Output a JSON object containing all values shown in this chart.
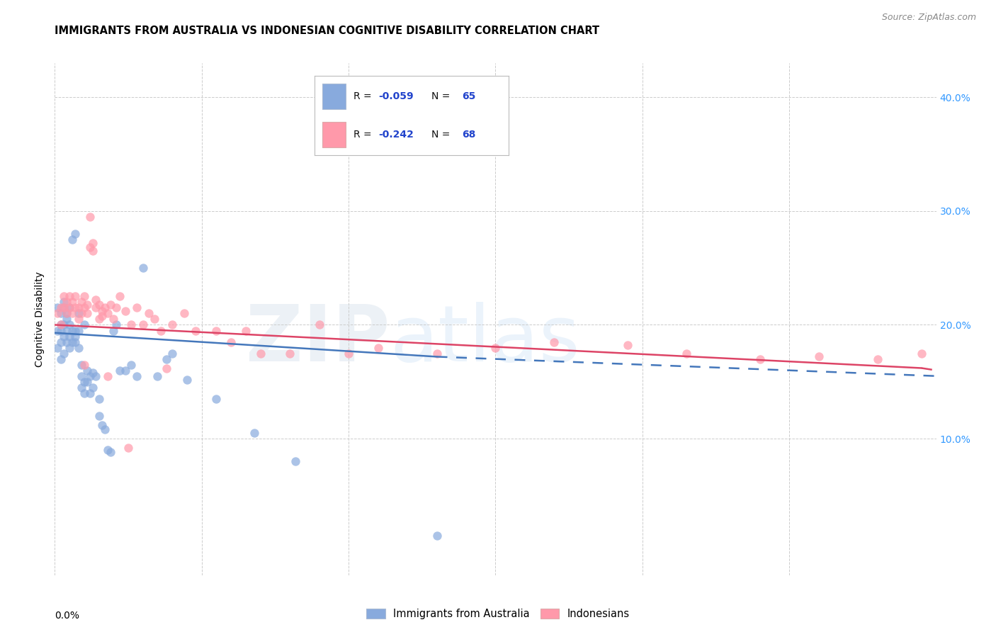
{
  "title": "IMMIGRANTS FROM AUSTRALIA VS INDONESIAN COGNITIVE DISABILITY CORRELATION CHART",
  "source": "Source: ZipAtlas.com",
  "ylabel": "Cognitive Disability",
  "yticks": [
    "10.0%",
    "20.0%",
    "30.0%",
    "40.0%"
  ],
  "ytick_vals": [
    0.1,
    0.2,
    0.3,
    0.4
  ],
  "xlim": [
    0.0,
    0.3
  ],
  "ylim": [
    -0.02,
    0.43
  ],
  "legend1_r": "-0.059",
  "legend1_n": "65",
  "legend2_r": "-0.242",
  "legend2_n": "68",
  "color_blue": "#88AADD",
  "color_pink": "#FF99AA",
  "color_blue_line": "#4477BB",
  "color_pink_line": "#DD4466",
  "legend_label1": "Immigrants from Australia",
  "legend_label2": "Indonesians",
  "blue_scatter_x": [
    0.001,
    0.001,
    0.001,
    0.002,
    0.002,
    0.002,
    0.002,
    0.002,
    0.003,
    0.003,
    0.003,
    0.003,
    0.003,
    0.004,
    0.004,
    0.004,
    0.004,
    0.005,
    0.005,
    0.005,
    0.005,
    0.006,
    0.006,
    0.006,
    0.007,
    0.007,
    0.007,
    0.007,
    0.008,
    0.008,
    0.008,
    0.009,
    0.009,
    0.009,
    0.01,
    0.01,
    0.01,
    0.011,
    0.011,
    0.012,
    0.012,
    0.013,
    0.013,
    0.014,
    0.015,
    0.015,
    0.016,
    0.017,
    0.018,
    0.019,
    0.02,
    0.021,
    0.022,
    0.024,
    0.026,
    0.028,
    0.03,
    0.035,
    0.038,
    0.04,
    0.045,
    0.055,
    0.068,
    0.082,
    0.13
  ],
  "blue_scatter_y": [
    0.18,
    0.195,
    0.215,
    0.17,
    0.185,
    0.195,
    0.2,
    0.21,
    0.175,
    0.19,
    0.2,
    0.215,
    0.22,
    0.185,
    0.195,
    0.205,
    0.21,
    0.18,
    0.19,
    0.2,
    0.215,
    0.185,
    0.195,
    0.275,
    0.185,
    0.19,
    0.195,
    0.28,
    0.18,
    0.195,
    0.21,
    0.145,
    0.155,
    0.165,
    0.14,
    0.15,
    0.2,
    0.15,
    0.16,
    0.14,
    0.155,
    0.145,
    0.158,
    0.155,
    0.12,
    0.135,
    0.112,
    0.108,
    0.09,
    0.088,
    0.195,
    0.2,
    0.16,
    0.16,
    0.165,
    0.155,
    0.25,
    0.155,
    0.17,
    0.175,
    0.152,
    0.135,
    0.105,
    0.08,
    0.015
  ],
  "pink_scatter_x": [
    0.001,
    0.002,
    0.002,
    0.003,
    0.003,
    0.004,
    0.004,
    0.005,
    0.005,
    0.006,
    0.006,
    0.007,
    0.007,
    0.008,
    0.008,
    0.009,
    0.009,
    0.01,
    0.01,
    0.011,
    0.011,
    0.012,
    0.012,
    0.013,
    0.013,
    0.014,
    0.014,
    0.015,
    0.015,
    0.016,
    0.016,
    0.017,
    0.018,
    0.019,
    0.02,
    0.021,
    0.022,
    0.024,
    0.026,
    0.028,
    0.03,
    0.032,
    0.034,
    0.036,
    0.04,
    0.044,
    0.048,
    0.055,
    0.06,
    0.065,
    0.07,
    0.08,
    0.09,
    0.1,
    0.11,
    0.13,
    0.15,
    0.17,
    0.195,
    0.215,
    0.24,
    0.26,
    0.28,
    0.295,
    0.01,
    0.018,
    0.025,
    0.038
  ],
  "pink_scatter_y": [
    0.21,
    0.2,
    0.215,
    0.215,
    0.225,
    0.21,
    0.22,
    0.215,
    0.225,
    0.21,
    0.22,
    0.215,
    0.225,
    0.205,
    0.215,
    0.21,
    0.22,
    0.215,
    0.225,
    0.21,
    0.218,
    0.295,
    0.268,
    0.272,
    0.265,
    0.215,
    0.222,
    0.218,
    0.205,
    0.212,
    0.208,
    0.215,
    0.21,
    0.218,
    0.205,
    0.215,
    0.225,
    0.212,
    0.2,
    0.215,
    0.2,
    0.21,
    0.205,
    0.195,
    0.2,
    0.21,
    0.195,
    0.195,
    0.185,
    0.195,
    0.175,
    0.175,
    0.2,
    0.175,
    0.18,
    0.175,
    0.18,
    0.185,
    0.182,
    0.175,
    0.17,
    0.172,
    0.17,
    0.175,
    0.165,
    0.155,
    0.092,
    0.162
  ],
  "blue_line_x0": 0.0,
  "blue_line_x_solid_end": 0.13,
  "blue_line_x_dash_end": 0.3,
  "blue_line_y_at_0": 0.193,
  "blue_line_y_at_13": 0.172,
  "blue_line_y_at_30": 0.155,
  "pink_line_x0": 0.0,
  "pink_line_x_solid_end": 0.295,
  "pink_line_x_dash_end": 0.3,
  "pink_line_y_at_0": 0.2,
  "pink_line_y_at_295": 0.162,
  "pink_line_y_at_30": 0.16
}
